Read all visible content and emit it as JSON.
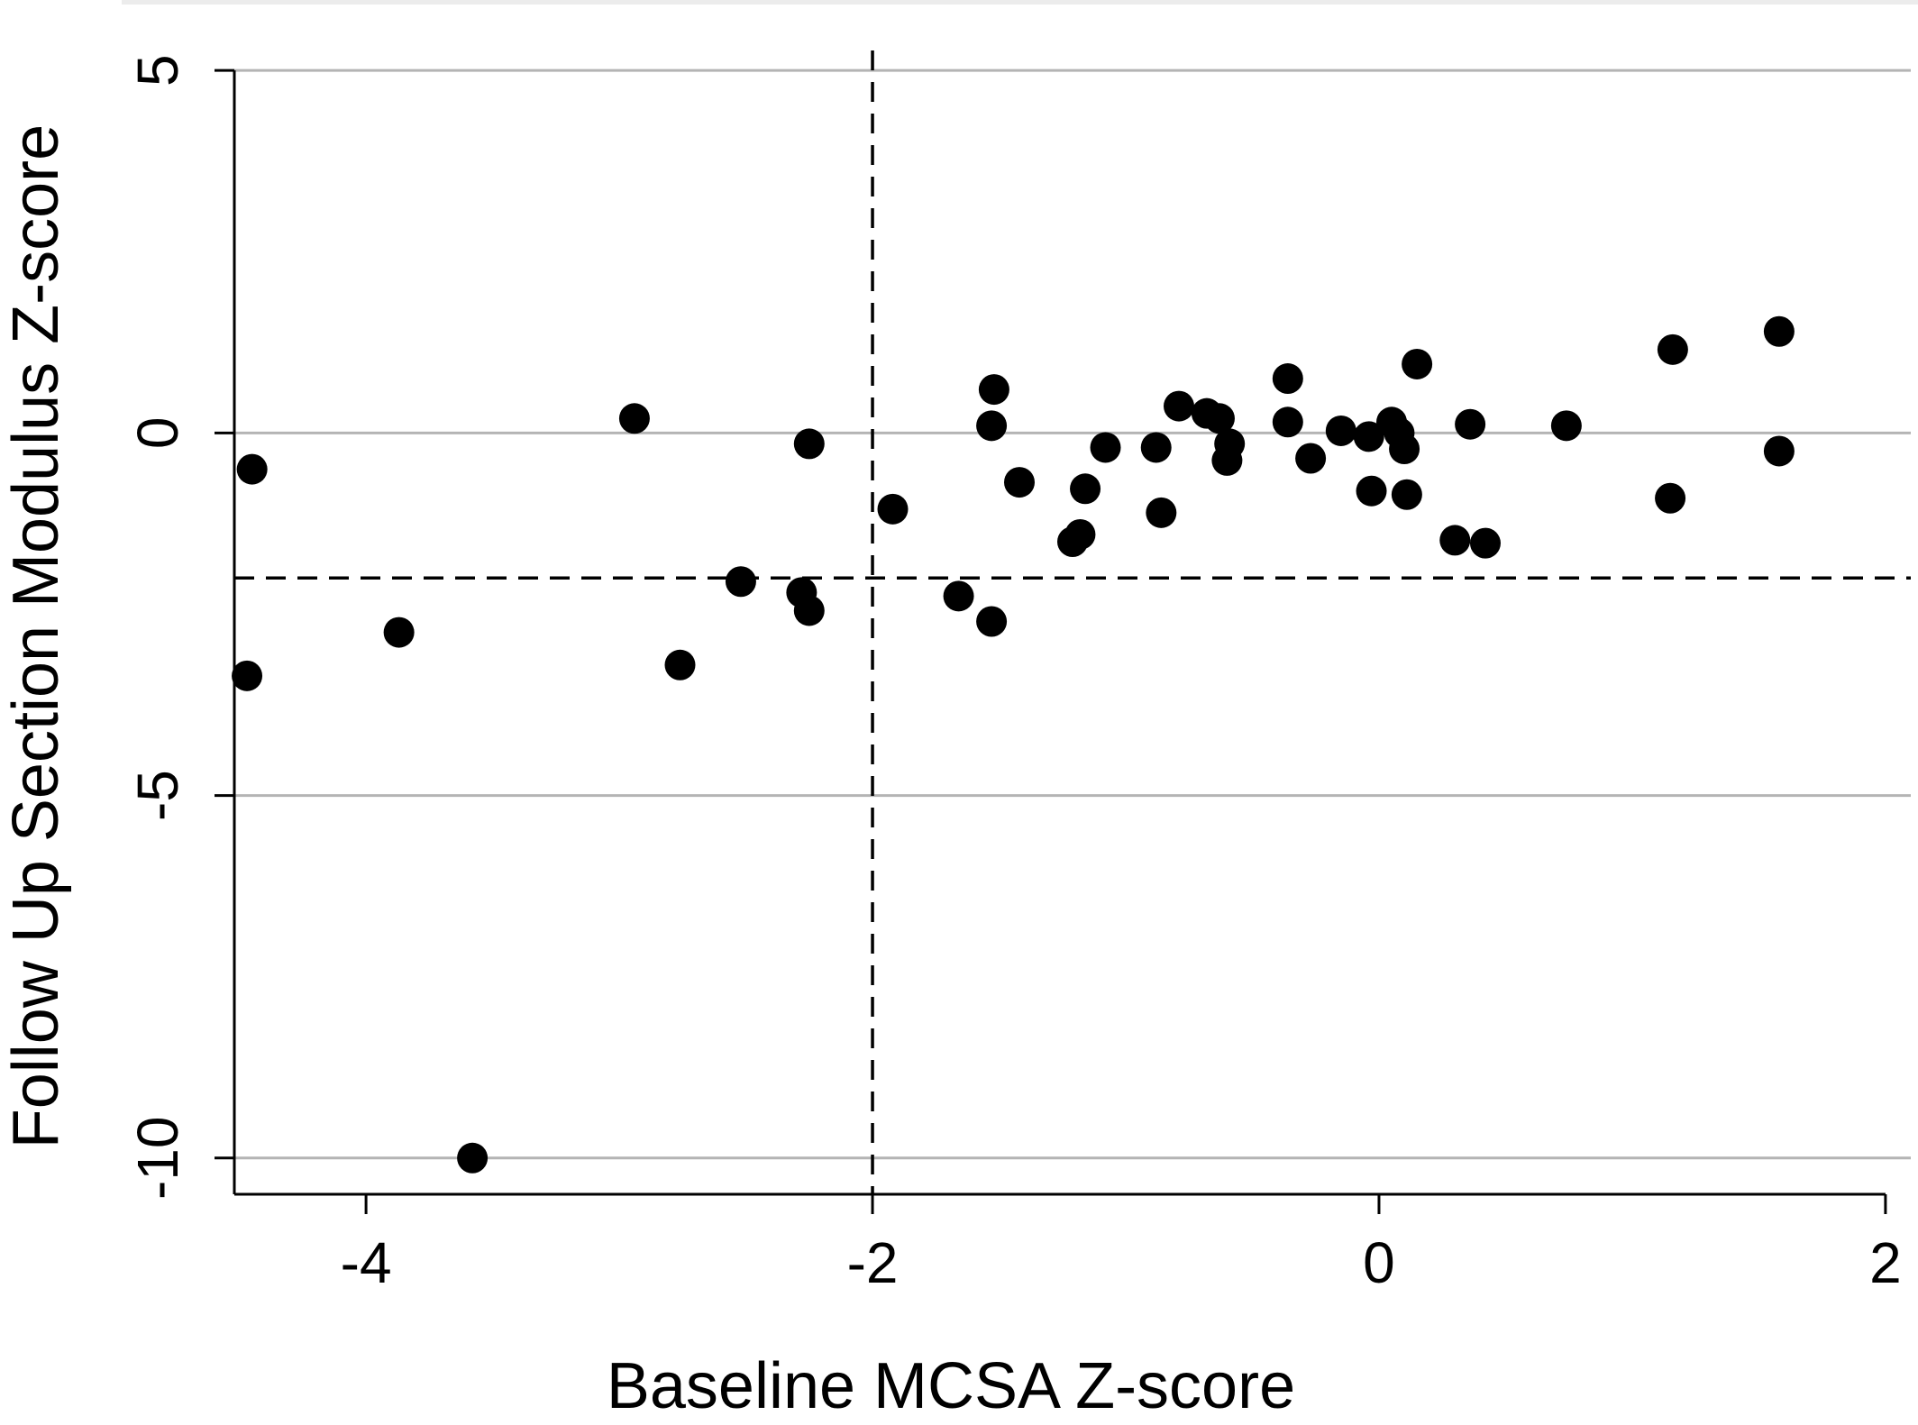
{
  "chart_data": {
    "type": "scatter",
    "title": "",
    "xlabel": "Baseline MCSA Z-score",
    "ylabel": "Follow Up Section Modulus Z-score",
    "xlim": [
      -4.52,
      2.1
    ],
    "ylim": [
      -10.5,
      5.35
    ],
    "x_ticks": [
      -4,
      -2,
      0,
      2
    ],
    "y_ticks": [
      -10,
      -5,
      0,
      5
    ],
    "x_tick_labels": [
      "-4",
      "-2",
      "0",
      "2"
    ],
    "y_tick_labels": [
      "-10",
      "-5",
      "0",
      "5"
    ],
    "grid": {
      "y": true,
      "x": false,
      "color": "#b4b4b4"
    },
    "reference_lines": [
      {
        "orientation": "vertical",
        "value": -2,
        "style": "dashed"
      },
      {
        "orientation": "horizontal",
        "value": -2,
        "style": "dashed"
      }
    ],
    "marker_color": "#000000",
    "points": [
      {
        "x": -4.45,
        "y": -0.5
      },
      {
        "x": -4.47,
        "y": -3.35
      },
      {
        "x": -3.87,
        "y": -2.75
      },
      {
        "x": -3.58,
        "y": -10.0
      },
      {
        "x": -2.94,
        "y": 0.2
      },
      {
        "x": -2.76,
        "y": -3.2
      },
      {
        "x": -2.52,
        "y": -2.05
      },
      {
        "x": -2.28,
        "y": -2.2
      },
      {
        "x": -2.25,
        "y": -0.15
      },
      {
        "x": -2.25,
        "y": -2.45
      },
      {
        "x": -1.92,
        "y": -1.05
      },
      {
        "x": -1.66,
        "y": -2.25
      },
      {
        "x": -1.53,
        "y": -2.6
      },
      {
        "x": -1.52,
        "y": 0.6
      },
      {
        "x": -1.53,
        "y": 0.1
      },
      {
        "x": -1.42,
        "y": -0.68
      },
      {
        "x": -1.21,
        "y": -1.5
      },
      {
        "x": -1.18,
        "y": -1.4
      },
      {
        "x": -1.16,
        "y": -0.77
      },
      {
        "x": -1.08,
        "y": -0.2
      },
      {
        "x": -0.88,
        "y": -0.2
      },
      {
        "x": -0.86,
        "y": -1.1
      },
      {
        "x": -0.79,
        "y": 0.37
      },
      {
        "x": -0.68,
        "y": 0.27
      },
      {
        "x": -0.63,
        "y": 0.2
      },
      {
        "x": -0.59,
        "y": -0.15
      },
      {
        "x": -0.6,
        "y": -0.38
      },
      {
        "x": -0.36,
        "y": 0.75
      },
      {
        "x": -0.36,
        "y": 0.15
      },
      {
        "x": -0.27,
        "y": -0.35
      },
      {
        "x": -0.15,
        "y": 0.03
      },
      {
        "x": -0.04,
        "y": -0.05
      },
      {
        "x": 0.05,
        "y": 0.15
      },
      {
        "x": 0.08,
        "y": 0.0
      },
      {
        "x": 0.1,
        "y": -0.22
      },
      {
        "x": -0.03,
        "y": -0.8
      },
      {
        "x": 0.11,
        "y": -0.85
      },
      {
        "x": 0.15,
        "y": 0.95
      },
      {
        "x": 0.3,
        "y": -1.48
      },
      {
        "x": 0.36,
        "y": 0.12
      },
      {
        "x": 0.42,
        "y": -1.52
      },
      {
        "x": 0.74,
        "y": 0.1
      },
      {
        "x": 1.15,
        "y": -0.9
      },
      {
        "x": 1.16,
        "y": 1.15
      },
      {
        "x": 1.58,
        "y": 1.4
      },
      {
        "x": 1.58,
        "y": -0.25
      }
    ]
  }
}
